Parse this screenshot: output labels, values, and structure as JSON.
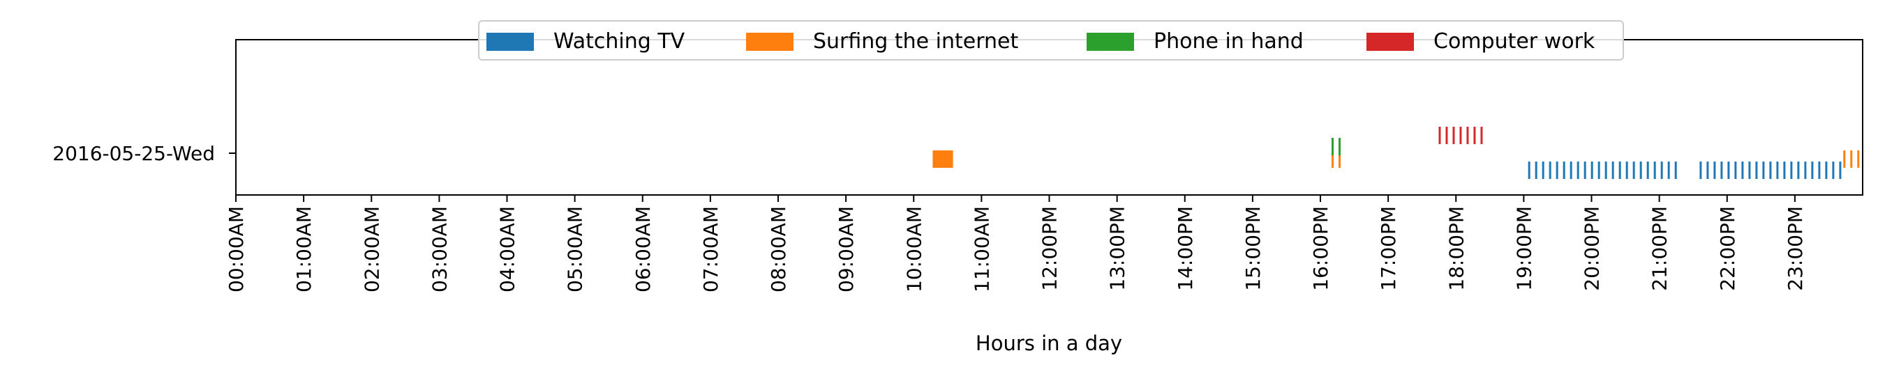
{
  "chart_data": {
    "type": "bar",
    "title": "",
    "xlabel": "Hours in a day",
    "ylabel": "",
    "xlim": [
      0,
      24
    ],
    "x_tick_labels": [
      "00:00AM",
      "01:00AM",
      "02:00AM",
      "03:00AM",
      "04:00AM",
      "05:00AM",
      "06:00AM",
      "07:00AM",
      "08:00AM",
      "09:00AM",
      "10:00AM",
      "11:00AM",
      "12:00PM",
      "13:00PM",
      "14:00PM",
      "15:00PM",
      "16:00PM",
      "17:00PM",
      "18:00PM",
      "19:00PM",
      "20:00PM",
      "21:00PM",
      "22:00PM",
      "23:00PM"
    ],
    "y_categories": [
      "2016-05-25-Wed"
    ],
    "grid": false,
    "legend_position": "top-center",
    "legend": [
      {
        "name": "Watching TV",
        "color": "#1f77b4"
      },
      {
        "name": "Surfing the internet",
        "color": "#ff7f0e"
      },
      {
        "name": "Phone in hand",
        "color": "#2ca02c"
      },
      {
        "name": "Computer work",
        "color": "#d62728"
      }
    ],
    "series": [
      {
        "name": "Watching TV",
        "color": "#1f77b4",
        "level": "low",
        "intervals": [
          [
            19.07,
            21.3
          ],
          [
            21.6,
            23.7
          ]
        ],
        "pattern": "dashed"
      },
      {
        "name": "Surfing the internet",
        "color": "#ff7f0e",
        "level": "mid",
        "intervals": [
          [
            10.28,
            10.58
          ],
          [
            16.17,
            16.38
          ],
          [
            23.72,
            24.0
          ]
        ],
        "pattern": [
          "solid",
          "dashed",
          "dashed"
        ]
      },
      {
        "name": "Phone in hand",
        "color": "#2ca02c",
        "level": "high",
        "intervals": [
          [
            16.17,
            16.38
          ]
        ],
        "pattern": "dashed"
      },
      {
        "name": "Computer work",
        "color": "#d62728",
        "level": "top",
        "intervals": [
          [
            17.75,
            18.42
          ]
        ],
        "pattern": "dashed"
      }
    ]
  }
}
